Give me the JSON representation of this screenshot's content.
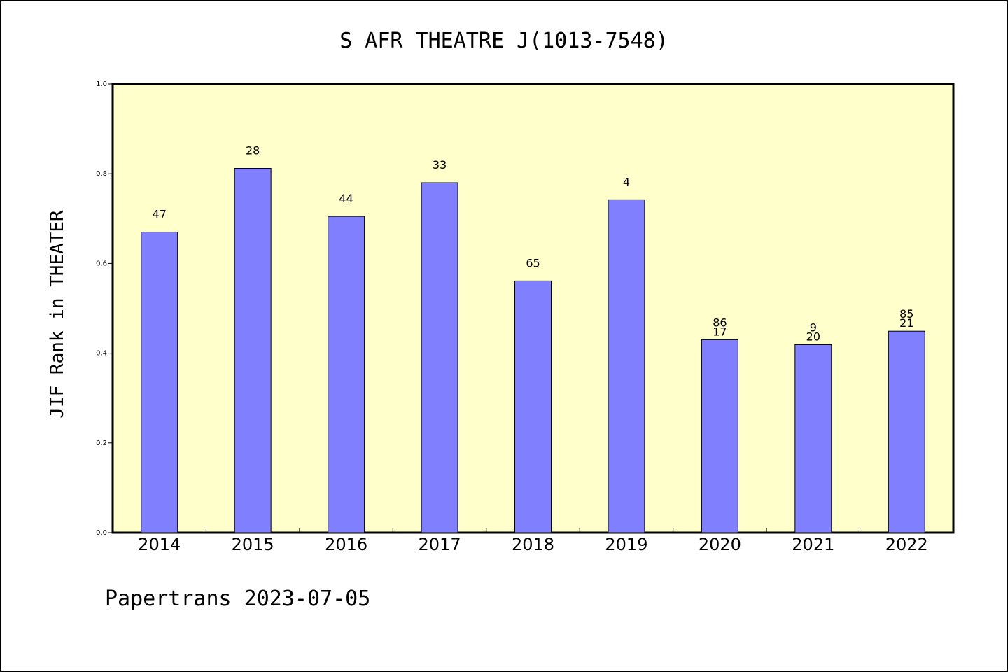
{
  "chart_data": {
    "type": "bar",
    "title": "S AFR THEATRE J(1013-7548)",
    "ylabel": "JIF Rank in THEATER",
    "xlabel": "",
    "ylim": [
      0,
      1.0
    ],
    "yticks": [
      "0.0",
      "0.2",
      "0.4",
      "0.6",
      "0.8",
      "1.0"
    ],
    "grid": false,
    "categories": [
      "2014",
      "2015",
      "2016",
      "2017",
      "2018",
      "2019",
      "2020",
      "2021",
      "2022"
    ],
    "values": [
      0.67,
      0.812,
      0.705,
      0.78,
      0.561,
      0.742,
      0.43,
      0.419,
      0.449
    ],
    "data_labels": [
      [
        "47"
      ],
      [
        "28"
      ],
      [
        "44"
      ],
      [
        "33"
      ],
      [
        "65"
      ],
      [
        "4"
      ],
      [
        "86",
        "17"
      ],
      [
        "9",
        "20"
      ],
      [
        "85",
        "21"
      ]
    ],
    "colors": {
      "plot_background": "#ffffcc",
      "bar_fill": "#8080ff",
      "bar_stroke": "#000000"
    }
  },
  "footer": {
    "text": "Papertrans 2023-07-05"
  }
}
